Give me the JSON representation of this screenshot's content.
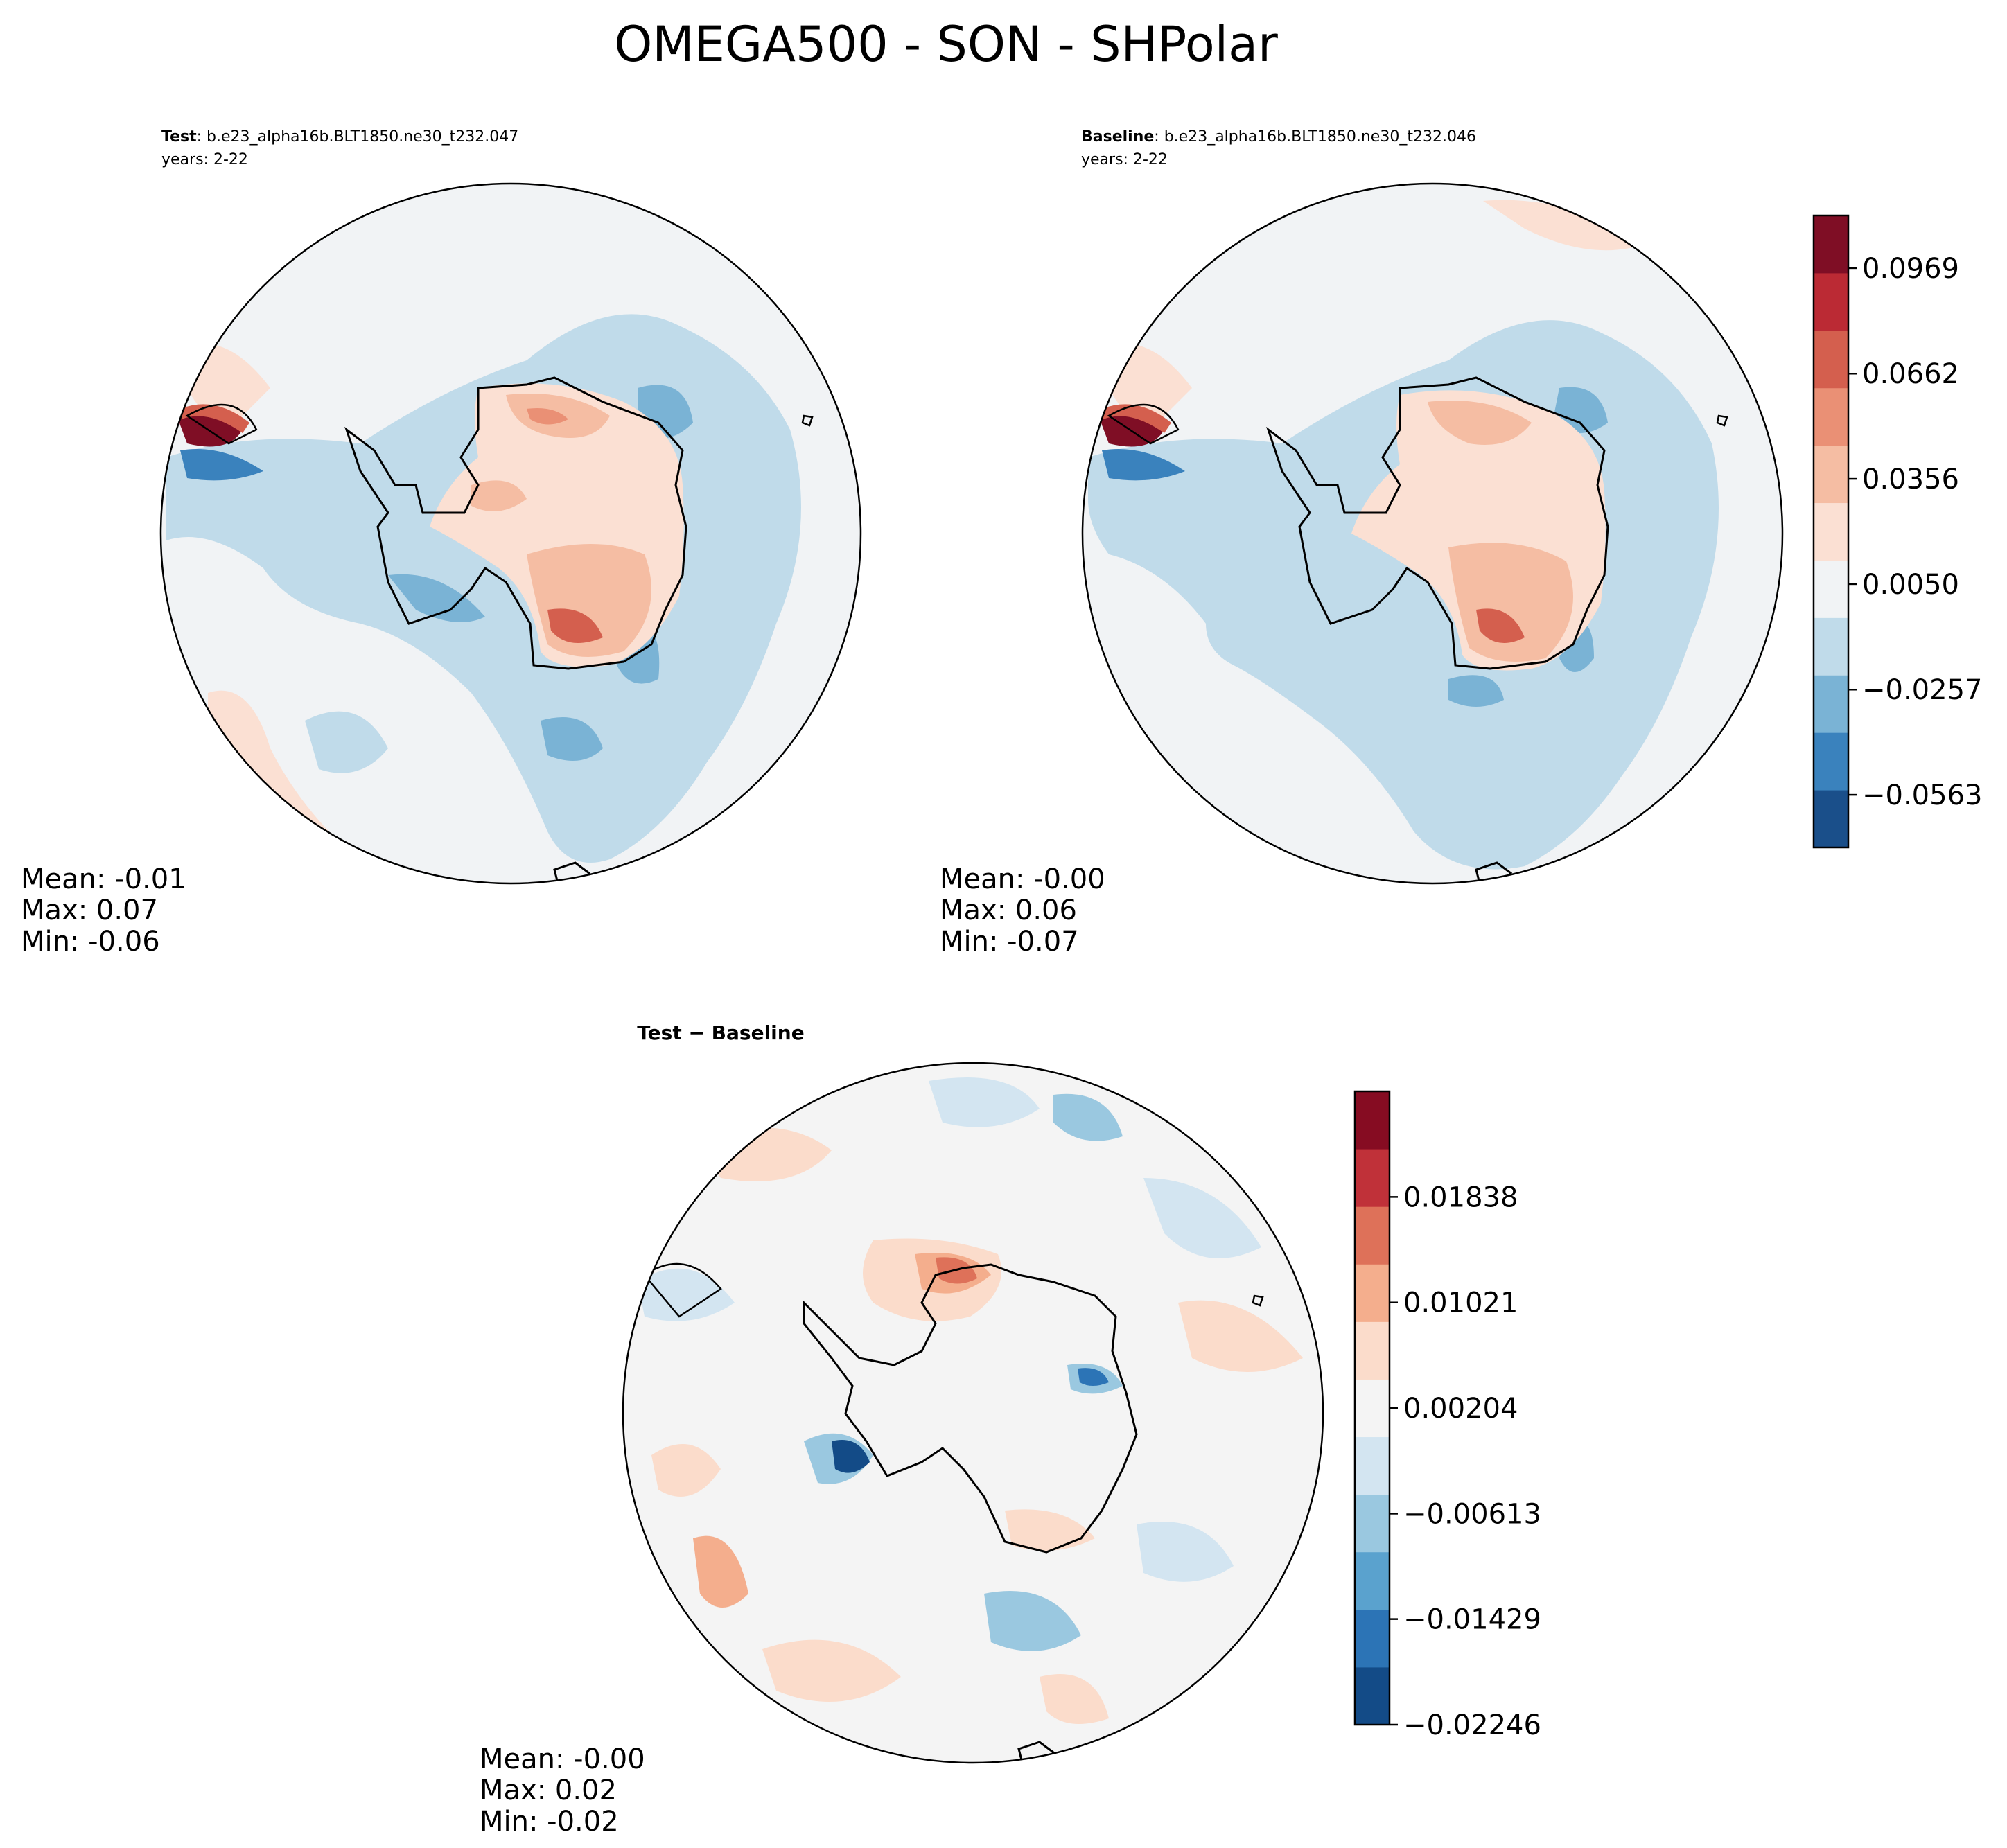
{
  "figure": {
    "title": "OMEGA500 - SON - SHPolar"
  },
  "panels": [
    {
      "id": "test",
      "label_bold": "Test",
      "label_rest": ": b.e23_alpha16b.BLT1850.ne30_t232.047",
      "years": "years: 2-22",
      "stats": {
        "mean": "Mean: -0.01",
        "max": "Max:  0.07",
        "min": "Min: -0.06"
      }
    },
    {
      "id": "baseline",
      "label_bold": "Baseline",
      "label_rest": ": b.e23_alpha16b.BLT1850.ne30_t232.046",
      "years": "years: 2-22",
      "stats": {
        "mean": "Mean: -0.00",
        "max": "Max:  0.06",
        "min": "Min: -0.07"
      }
    },
    {
      "id": "diff",
      "title": "Test − Baseline",
      "stats": {
        "mean": "Mean: -0.00",
        "max": "Max:  0.02",
        "min": "Min: -0.02"
      }
    }
  ],
  "colorbars": {
    "main": {
      "ticks": [
        "0.0969",
        "0.0662",
        "0.0356",
        "0.0050",
        "−0.0257",
        "−0.0563"
      ],
      "tick_values": [
        0.0969,
        0.0662,
        0.0356,
        0.005,
        -0.0257,
        -0.0563
      ],
      "range": [
        -0.0716,
        0.1122
      ],
      "colors": [
        "#1a4f8a",
        "#3a82bd",
        "#7ab3d5",
        "#c0dbea",
        "#f1f3f5",
        "#fbe0d3",
        "#f5bda3",
        "#ea9075",
        "#d45f4e",
        "#bb2a34",
        "#7f0e25"
      ]
    },
    "diff": {
      "ticks": [
        "0.01838",
        "0.01021",
        "0.00204",
        "−0.00613",
        "−0.01429",
        "−0.02246"
      ],
      "tick_values": [
        0.01838,
        0.01021,
        0.00204,
        -0.00613,
        -0.01429,
        -0.02246
      ],
      "range": [
        -0.02246,
        0.02655
      ],
      "colors": [
        "#134b87",
        "#2c74b6",
        "#5aa2ce",
        "#9ac8e0",
        "#d3e5f1",
        "#f4f4f4",
        "#fbdccb",
        "#f4ae8d",
        "#de7159",
        "#c03139",
        "#860c22"
      ]
    }
  },
  "map_colors": {
    "background": "#f1f3f5",
    "light_blue": "#c0dbea",
    "mid_blue": "#7ab3d5",
    "dark_blue": "#3a82bd",
    "light_red": "#fbe0d3",
    "mid_red": "#f5bda3",
    "red": "#ea9075",
    "dark_red": "#d45f4e",
    "deep_red": "#7f0e25",
    "diff_background": "#f4f4f4"
  }
}
